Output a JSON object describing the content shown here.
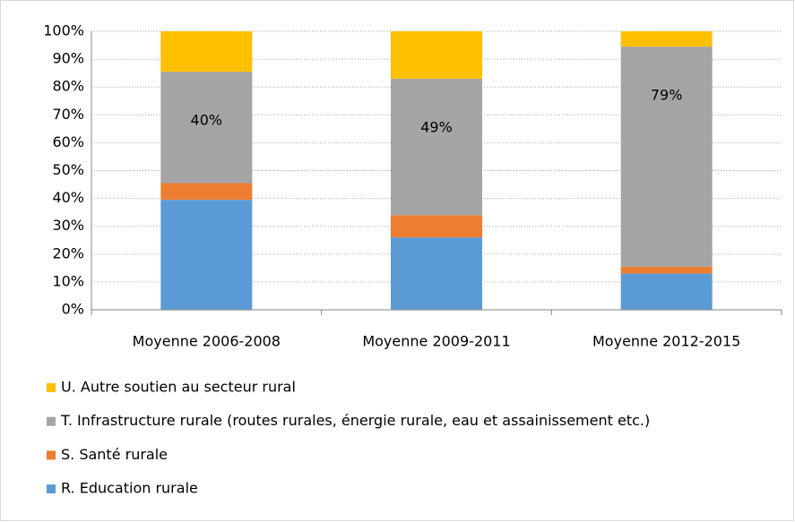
{
  "chart_data": {
    "type": "stacked_bar",
    "categories": [
      "Moyenne 2006-2008",
      "Moyenne 2009-2011",
      "Moyenne 2012-2015"
    ],
    "series": [
      {
        "name": "R. Education rurale",
        "color": "#5b9bd5",
        "values": [
          39.5,
          26,
          13
        ]
      },
      {
        "name": "S. Santé rurale",
        "color": "#ed7d31",
        "values": [
          6,
          8,
          2.5
        ]
      },
      {
        "name": "T. Infrastructure rurale (routes rurales, énergie rurale, eau et assainissement etc.)",
        "color": "#a5a5a5",
        "values": [
          40,
          49,
          79
        ],
        "value_labels": [
          "40%",
          "49%",
          "79%"
        ]
      },
      {
        "name": "U. Autre soutien au secteur rural",
        "color": "#ffc000",
        "values": [
          14.5,
          17,
          5.5
        ]
      }
    ],
    "ylim": [
      0,
      100
    ],
    "yticks": [
      {
        "value": 0,
        "label": "0%"
      },
      {
        "value": 10,
        "label": "10%"
      },
      {
        "value": 20,
        "label": "20%"
      },
      {
        "value": 30,
        "label": "30%"
      },
      {
        "value": 40,
        "label": "40%"
      },
      {
        "value": 50,
        "label": "50%"
      },
      {
        "value": 60,
        "label": "60%"
      },
      {
        "value": 70,
        "label": "70%"
      },
      {
        "value": 80,
        "label": "80%"
      },
      {
        "value": 90,
        "label": "90%"
      },
      {
        "value": 100,
        "label": "100%"
      }
    ],
    "grid": true
  }
}
